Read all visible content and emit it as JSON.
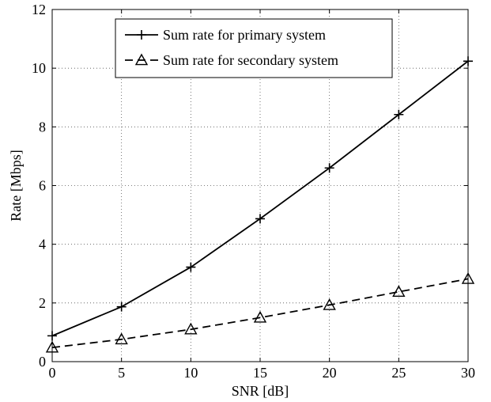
{
  "chart_data": {
    "type": "line",
    "title": "",
    "xlabel": "SNR [dB]",
    "ylabel": "Rate [Mbps]",
    "xlim": [
      0,
      30
    ],
    "ylim": [
      0,
      12
    ],
    "xticks": [
      0,
      5,
      10,
      15,
      20,
      25,
      30
    ],
    "yticks": [
      0,
      2,
      4,
      6,
      8,
      10,
      12
    ],
    "grid": true,
    "legend_position": "top-center",
    "x": [
      0,
      5,
      10,
      15,
      20,
      25,
      30
    ],
    "series": [
      {
        "name": "Sum rate for primary system",
        "values": [
          0.88,
          1.87,
          3.22,
          4.87,
          6.6,
          8.42,
          10.24
        ],
        "line_style": "solid",
        "marker": "plus",
        "color": "#000000"
      },
      {
        "name": "Sum rate for secondary system",
        "values": [
          0.48,
          0.76,
          1.1,
          1.5,
          1.93,
          2.38,
          2.82
        ],
        "line_style": "dashed",
        "marker": "triangle",
        "color": "#000000"
      }
    ]
  }
}
